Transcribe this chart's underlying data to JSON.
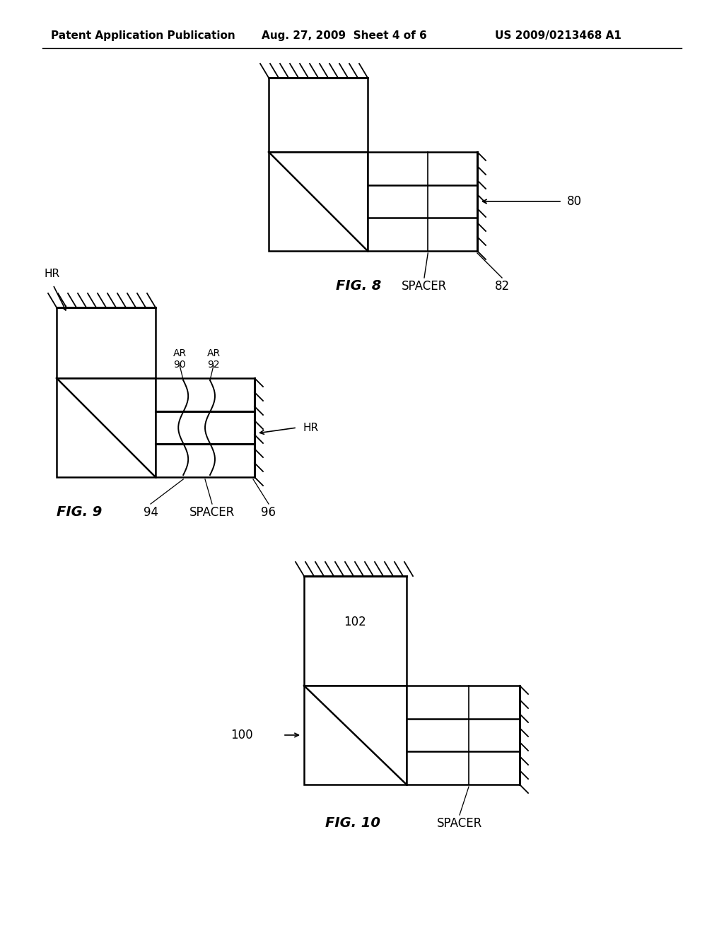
{
  "bg_color": "#ffffff",
  "header_left": "Patent Application Publication",
  "header_mid": "Aug. 27, 2009  Sheet 4 of 6",
  "header_right": "US 2009/0213468 A1",
  "line_color": "#000000"
}
